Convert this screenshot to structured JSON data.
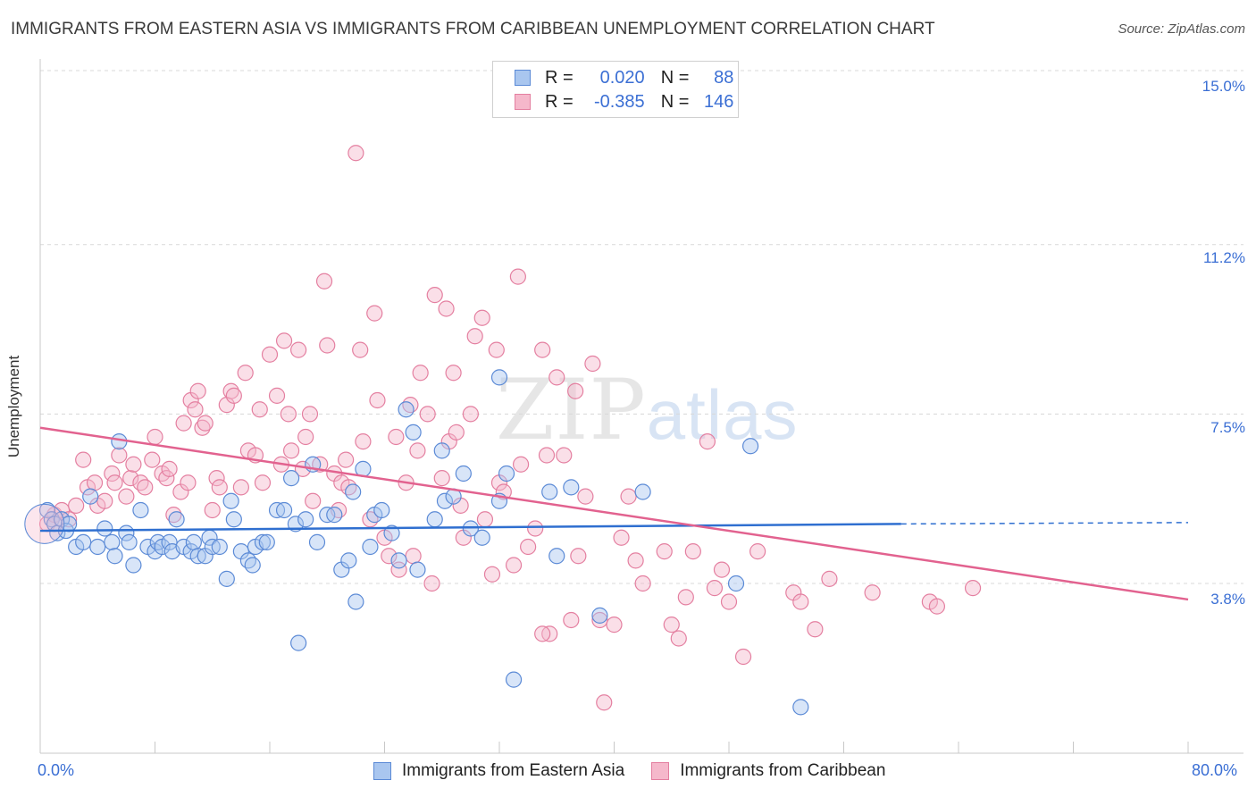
{
  "header": {
    "title": "IMMIGRANTS FROM EASTERN ASIA VS IMMIGRANTS FROM CARIBBEAN UNEMPLOYMENT CORRELATION CHART",
    "source": "Source: ZipAtlas.com"
  },
  "legend": {
    "r_label": "R =",
    "n_label": "N =",
    "rows": [
      {
        "r": "0.020",
        "n": "88"
      },
      {
        "r": "-0.385",
        "n": "146"
      }
    ]
  },
  "watermark": {
    "zip": "ZIP",
    "atlas": "atlas"
  },
  "colors": {
    "blue_fill": "#a9c6ef",
    "blue_stroke": "#5b8ad6",
    "blue_line": "#2f6fd0",
    "pink_fill": "#f5b8cb",
    "pink_stroke": "#e47fa0",
    "pink_line": "#e2628f",
    "grid": "#d8d8d8",
    "axis_text": "#3b6fd4"
  },
  "chart_data": {
    "type": "scatter",
    "title": "IMMIGRANTS FROM EASTERN ASIA VS IMMIGRANTS FROM CARIBBEAN UNEMPLOYMENT CORRELATION CHART",
    "xlabel": "",
    "ylabel": "Unemployment",
    "xlim": [
      0,
      80
    ],
    "ylim": [
      0.5,
      16.0
    ],
    "x_tick_labels": [
      "0.0%",
      "80.0%"
    ],
    "y_ticks": [
      3.8,
      7.5,
      11.2,
      15.0
    ],
    "y_tick_labels": [
      "3.8%",
      "7.5%",
      "11.2%",
      "15.0%"
    ],
    "grid": true,
    "legend_position": "bottom",
    "series": [
      {
        "name": "Immigrants from Eastern Asia",
        "color": "blue",
        "trend": {
          "x_start": 0,
          "y_start": 4.95,
          "x_end": 60,
          "y_end": 5.1,
          "x_dash_end": 80,
          "y_dash_end": 5.13
        },
        "points": [
          [
            0.5,
            5.4
          ],
          [
            0.8,
            5.2
          ],
          [
            1.0,
            5.1
          ],
          [
            1.2,
            4.9
          ],
          [
            1.5,
            5.2
          ],
          [
            1.8,
            4.95
          ],
          [
            2.0,
            5.1
          ],
          [
            2.5,
            4.6
          ],
          [
            3.0,
            4.7
          ],
          [
            3.5,
            5.7
          ],
          [
            4.0,
            4.6
          ],
          [
            4.5,
            5.0
          ],
          [
            5.0,
            4.7
          ],
          [
            5.2,
            4.4
          ],
          [
            5.5,
            6.9
          ],
          [
            6.0,
            4.9
          ],
          [
            6.2,
            4.7
          ],
          [
            6.5,
            4.2
          ],
          [
            7.0,
            5.4
          ],
          [
            7.5,
            4.6
          ],
          [
            8.0,
            4.5
          ],
          [
            8.2,
            4.7
          ],
          [
            8.5,
            4.6
          ],
          [
            9.0,
            4.7
          ],
          [
            9.2,
            4.5
          ],
          [
            9.5,
            5.2
          ],
          [
            10.0,
            4.6
          ],
          [
            10.5,
            4.5
          ],
          [
            10.7,
            4.7
          ],
          [
            11.0,
            4.4
          ],
          [
            11.5,
            4.4
          ],
          [
            11.8,
            4.8
          ],
          [
            12.0,
            4.6
          ],
          [
            12.5,
            4.6
          ],
          [
            13.0,
            3.9
          ],
          [
            13.3,
            5.6
          ],
          [
            13.5,
            5.2
          ],
          [
            14.0,
            4.5
          ],
          [
            14.5,
            4.3
          ],
          [
            14.8,
            4.2
          ],
          [
            15.0,
            4.6
          ],
          [
            15.5,
            4.7
          ],
          [
            15.8,
            4.7
          ],
          [
            16.5,
            5.4
          ],
          [
            17.0,
            5.4
          ],
          [
            17.5,
            6.1
          ],
          [
            17.8,
            5.1
          ],
          [
            18.0,
            2.5
          ],
          [
            18.5,
            5.2
          ],
          [
            19.0,
            6.4
          ],
          [
            19.3,
            4.7
          ],
          [
            20.0,
            5.3
          ],
          [
            20.5,
            5.3
          ],
          [
            21.0,
            4.1
          ],
          [
            21.5,
            4.3
          ],
          [
            21.8,
            5.8
          ],
          [
            22.0,
            3.4
          ],
          [
            22.5,
            6.3
          ],
          [
            23.0,
            4.6
          ],
          [
            23.3,
            5.3
          ],
          [
            23.8,
            5.4
          ],
          [
            24.5,
            4.9
          ],
          [
            25.0,
            4.3
          ],
          [
            25.5,
            7.6
          ],
          [
            26.0,
            7.1
          ],
          [
            26.3,
            4.1
          ],
          [
            27.5,
            5.2
          ],
          [
            28.0,
            6.7
          ],
          [
            28.2,
            5.6
          ],
          [
            28.8,
            5.7
          ],
          [
            29.5,
            6.2
          ],
          [
            30.0,
            5.0
          ],
          [
            30.8,
            4.8
          ],
          [
            32.0,
            8.3
          ],
          [
            32.0,
            5.6
          ],
          [
            32.5,
            6.2
          ],
          [
            33.0,
            1.7
          ],
          [
            35.5,
            5.8
          ],
          [
            36.0,
            4.4
          ],
          [
            37.0,
            5.9
          ],
          [
            39.0,
            3.1
          ],
          [
            42.0,
            5.8
          ],
          [
            48.5,
            3.8
          ],
          [
            49.5,
            6.8
          ],
          [
            53.0,
            1.1
          ]
        ]
      },
      {
        "name": "Immigrants from Caribbean",
        "color": "pink",
        "trend": {
          "x_start": 0,
          "y_start": 7.2,
          "x_end": 80,
          "y_end": 3.45
        },
        "points": [
          [
            0.5,
            5.1
          ],
          [
            1.0,
            5.3
          ],
          [
            1.5,
            5.4
          ],
          [
            2.0,
            5.2
          ],
          [
            2.5,
            5.5
          ],
          [
            3.0,
            6.5
          ],
          [
            3.3,
            5.9
          ],
          [
            3.8,
            6.0
          ],
          [
            4.0,
            5.5
          ],
          [
            4.5,
            5.6
          ],
          [
            5.0,
            6.2
          ],
          [
            5.2,
            6.0
          ],
          [
            5.5,
            6.6
          ],
          [
            6.0,
            5.7
          ],
          [
            6.3,
            6.1
          ],
          [
            6.5,
            6.4
          ],
          [
            7.0,
            6.0
          ],
          [
            7.3,
            5.9
          ],
          [
            7.8,
            6.5
          ],
          [
            8.0,
            7.0
          ],
          [
            8.5,
            6.2
          ],
          [
            8.8,
            6.1
          ],
          [
            9.0,
            6.3
          ],
          [
            9.3,
            5.3
          ],
          [
            9.8,
            5.8
          ],
          [
            10.0,
            7.3
          ],
          [
            10.3,
            6.0
          ],
          [
            10.5,
            7.8
          ],
          [
            10.8,
            7.6
          ],
          [
            11.0,
            8.0
          ],
          [
            11.3,
            7.2
          ],
          [
            11.5,
            7.3
          ],
          [
            12.0,
            5.4
          ],
          [
            12.3,
            6.1
          ],
          [
            12.5,
            5.9
          ],
          [
            13.0,
            7.7
          ],
          [
            13.3,
            8.0
          ],
          [
            13.5,
            7.9
          ],
          [
            14.0,
            5.9
          ],
          [
            14.3,
            8.4
          ],
          [
            14.5,
            6.7
          ],
          [
            15.0,
            6.6
          ],
          [
            15.3,
            7.6
          ],
          [
            15.5,
            6.0
          ],
          [
            16.0,
            8.8
          ],
          [
            16.5,
            7.9
          ],
          [
            16.8,
            6.4
          ],
          [
            17.0,
            9.1
          ],
          [
            17.3,
            7.5
          ],
          [
            17.5,
            6.7
          ],
          [
            18.0,
            8.9
          ],
          [
            18.3,
            6.3
          ],
          [
            18.5,
            7.0
          ],
          [
            18.8,
            7.5
          ],
          [
            19.0,
            5.6
          ],
          [
            19.5,
            6.4
          ],
          [
            19.8,
            10.4
          ],
          [
            20.0,
            9.0
          ],
          [
            20.5,
            6.2
          ],
          [
            20.8,
            5.4
          ],
          [
            21.0,
            6.0
          ],
          [
            21.3,
            6.5
          ],
          [
            21.5,
            5.9
          ],
          [
            22.0,
            13.2
          ],
          [
            22.3,
            8.9
          ],
          [
            22.5,
            6.9
          ],
          [
            23.0,
            5.2
          ],
          [
            23.3,
            9.7
          ],
          [
            23.5,
            7.8
          ],
          [
            24.0,
            4.8
          ],
          [
            24.3,
            4.4
          ],
          [
            24.8,
            7.0
          ],
          [
            25.0,
            4.1
          ],
          [
            25.5,
            6.0
          ],
          [
            25.8,
            7.7
          ],
          [
            26.0,
            4.4
          ],
          [
            26.3,
            6.7
          ],
          [
            26.5,
            8.4
          ],
          [
            27.0,
            7.5
          ],
          [
            27.3,
            3.8
          ],
          [
            27.5,
            10.1
          ],
          [
            28.0,
            6.1
          ],
          [
            28.3,
            9.8
          ],
          [
            28.5,
            6.9
          ],
          [
            28.8,
            8.4
          ],
          [
            29.0,
            7.1
          ],
          [
            29.3,
            5.5
          ],
          [
            29.5,
            4.8
          ],
          [
            30.0,
            7.5
          ],
          [
            30.3,
            9.2
          ],
          [
            30.8,
            9.6
          ],
          [
            31.0,
            5.2
          ],
          [
            31.5,
            4.0
          ],
          [
            31.8,
            8.9
          ],
          [
            32.0,
            6.0
          ],
          [
            32.3,
            5.8
          ],
          [
            33.0,
            4.2
          ],
          [
            33.3,
            10.5
          ],
          [
            33.5,
            6.4
          ],
          [
            34.0,
            4.6
          ],
          [
            34.5,
            5.0
          ],
          [
            35.0,
            8.9
          ],
          [
            35.3,
            6.6
          ],
          [
            35.5,
            2.7
          ],
          [
            36.0,
            8.3
          ],
          [
            36.5,
            6.6
          ],
          [
            37.0,
            3.0
          ],
          [
            37.3,
            8.0
          ],
          [
            37.5,
            4.4
          ],
          [
            38.0,
            5.7
          ],
          [
            38.5,
            8.6
          ],
          [
            39.0,
            3.0
          ],
          [
            39.3,
            1.2
          ],
          [
            40.0,
            2.9
          ],
          [
            40.5,
            4.8
          ],
          [
            41.0,
            5.7
          ],
          [
            41.5,
            4.3
          ],
          [
            42.0,
            3.8
          ],
          [
            43.5,
            4.5
          ],
          [
            44.0,
            2.9
          ],
          [
            44.5,
            2.6
          ],
          [
            45.0,
            3.5
          ],
          [
            45.5,
            4.5
          ],
          [
            46.5,
            6.9
          ],
          [
            47.0,
            3.7
          ],
          [
            47.5,
            4.1
          ],
          [
            48.0,
            3.4
          ],
          [
            49.0,
            2.2
          ],
          [
            50.0,
            4.5
          ],
          [
            52.5,
            3.6
          ],
          [
            53.0,
            3.4
          ],
          [
            54.0,
            2.8
          ],
          [
            55.0,
            3.9
          ],
          [
            58.0,
            3.6
          ],
          [
            62.0,
            3.4
          ],
          [
            62.5,
            3.3
          ],
          [
            65.0,
            3.7
          ],
          [
            35.0,
            2.7
          ]
        ]
      }
    ]
  },
  "bottom_legend": {
    "items": [
      "Immigrants from Eastern Asia",
      "Immigrants from Caribbean"
    ]
  }
}
